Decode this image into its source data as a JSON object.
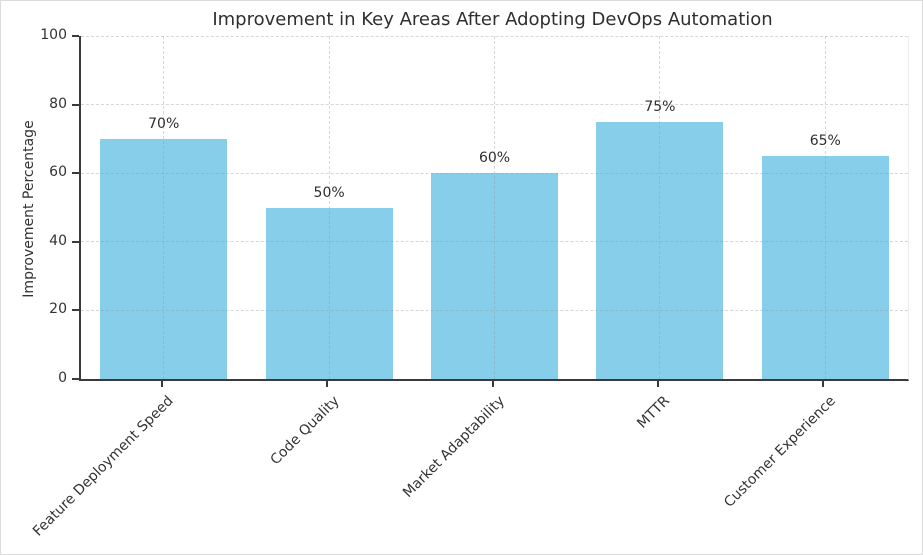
{
  "chart_data": {
    "type": "bar",
    "title": "Improvement in Key Areas After Adopting DevOps Automation",
    "ylabel": "Improvement Percentage",
    "xlabel": "",
    "categories": [
      "Feature Deployment Speed",
      "Code Quality",
      "Market Adaptability",
      "MTTR",
      "Customer Experience"
    ],
    "values": [
      70,
      50,
      60,
      75,
      65
    ],
    "value_labels": [
      "70%",
      "50%",
      "60%",
      "75%",
      "65%"
    ],
    "ylim": [
      0,
      100
    ],
    "yticks": [
      0,
      20,
      40,
      60,
      80,
      100
    ],
    "grid": "dashed, both axes",
    "legend": "none",
    "colors": {
      "bar_fill": "#87CEEB",
      "axis": "#3a3a3a",
      "grid": "#c9c9c9",
      "text": "#333333",
      "background": "#ffffff"
    }
  }
}
